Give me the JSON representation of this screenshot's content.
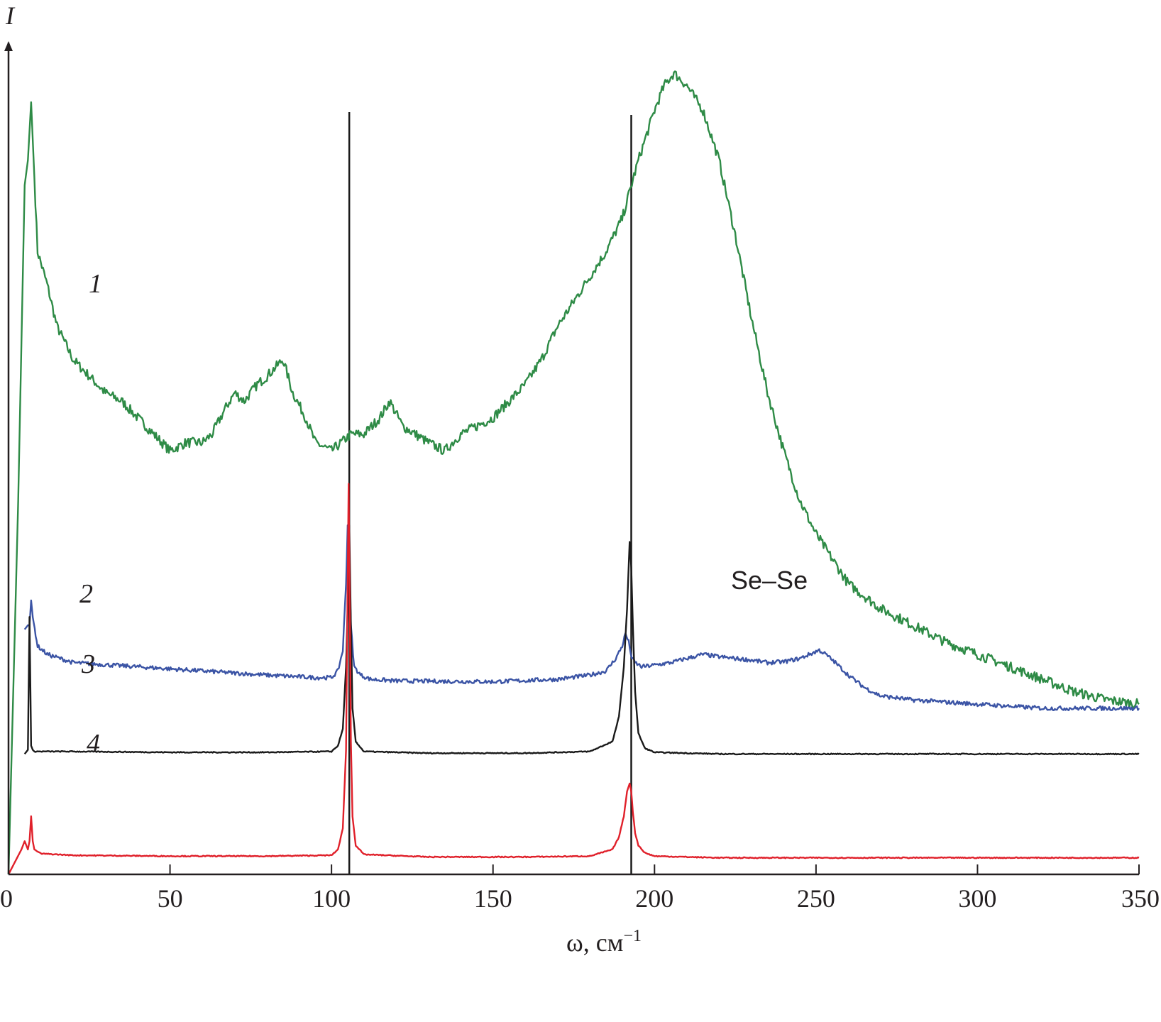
{
  "chart_data": {
    "type": "line",
    "xlabel": "ω, см",
    "xlabel_sup": "−1",
    "ylabel": "I",
    "xlim": [
      0,
      350
    ],
    "ylim": [
      0,
      1.0
    ],
    "x_ticks": [
      "0",
      "50",
      "100",
      "150",
      "200",
      "250",
      "300",
      "350"
    ],
    "grid": false,
    "legend": "none",
    "annotation": "Se–Se",
    "reference_lines_x": [
      105.5,
      192.8
    ],
    "series": [
      {
        "label": "1",
        "color": "#2e8b46",
        "x": [
          0,
          3,
          5,
          6,
          7,
          9,
          12,
          15,
          20,
          25,
          30,
          35,
          40,
          45,
          50,
          55,
          60,
          63,
          67,
          70,
          73,
          77,
          80,
          85,
          88,
          92,
          95,
          100,
          103,
          106,
          110,
          115,
          118,
          122,
          126,
          130,
          135,
          140,
          145,
          150,
          155,
          160,
          165,
          170,
          175,
          180,
          185,
          190,
          195,
          200,
          203,
          206,
          210,
          215,
          220,
          225,
          230,
          235,
          240,
          245,
          250,
          255,
          260,
          270,
          280,
          290,
          300,
          310,
          320,
          330,
          340,
          350
        ],
        "y": [
          0.0,
          0.45,
          0.83,
          0.86,
          0.93,
          0.75,
          0.71,
          0.66,
          0.62,
          0.6,
          0.58,
          0.57,
          0.55,
          0.53,
          0.51,
          0.52,
          0.52,
          0.53,
          0.56,
          0.58,
          0.57,
          0.59,
          0.6,
          0.62,
          0.58,
          0.55,
          0.52,
          0.51,
          0.52,
          0.53,
          0.53,
          0.55,
          0.57,
          0.54,
          0.53,
          0.52,
          0.51,
          0.53,
          0.54,
          0.55,
          0.57,
          0.59,
          0.62,
          0.66,
          0.69,
          0.72,
          0.75,
          0.79,
          0.86,
          0.92,
          0.95,
          0.965,
          0.95,
          0.92,
          0.86,
          0.77,
          0.67,
          0.58,
          0.51,
          0.45,
          0.41,
          0.38,
          0.35,
          0.32,
          0.3,
          0.28,
          0.265,
          0.25,
          0.235,
          0.22,
          0.21,
          0.205
        ]
      },
      {
        "label": "2",
        "color": "#3b54a5",
        "x": [
          5,
          6,
          6.5,
          7,
          7.5,
          9,
          12,
          20,
          40,
          60,
          80,
          95,
          100,
          102,
          103.5,
          104.5,
          105,
          105.5,
          106,
          107,
          109,
          112,
          120,
          150,
          170,
          180,
          185,
          188,
          190,
          191,
          192,
          193,
          194,
          196,
          200,
          205,
          210,
          215,
          220,
          225,
          230,
          235,
          240,
          245,
          248,
          251,
          253,
          256,
          260,
          265,
          270,
          280,
          300,
          320,
          350
        ],
        "y": [
          0.295,
          0.3,
          0.3,
          0.33,
          0.31,
          0.275,
          0.265,
          0.255,
          0.25,
          0.245,
          0.24,
          0.237,
          0.237,
          0.245,
          0.27,
          0.35,
          0.42,
          0.37,
          0.3,
          0.25,
          0.24,
          0.235,
          0.233,
          0.232,
          0.235,
          0.24,
          0.245,
          0.26,
          0.275,
          0.29,
          0.28,
          0.26,
          0.255,
          0.25,
          0.252,
          0.255,
          0.26,
          0.265,
          0.262,
          0.26,
          0.258,
          0.255,
          0.256,
          0.26,
          0.265,
          0.27,
          0.265,
          0.255,
          0.24,
          0.225,
          0.215,
          0.21,
          0.205,
          0.2,
          0.2
        ]
      },
      {
        "label": "3",
        "color": "#1a1a1a",
        "x": [
          5,
          6,
          6.5,
          7,
          7.5,
          8,
          10,
          20,
          50,
          80,
          100,
          102,
          103.5,
          104.5,
          105,
          105.5,
          106,
          106.5,
          107.5,
          110,
          130,
          160,
          180,
          187,
          189,
          190.5,
          191.5,
          192.3,
          192.8,
          193.3,
          194,
          195,
          197,
          200,
          220,
          260,
          300,
          350
        ],
        "y": [
          0.145,
          0.15,
          0.31,
          0.155,
          0.15,
          0.148,
          0.148,
          0.148,
          0.147,
          0.147,
          0.148,
          0.155,
          0.175,
          0.25,
          0.32,
          0.42,
          0.3,
          0.2,
          0.16,
          0.148,
          0.146,
          0.146,
          0.148,
          0.16,
          0.19,
          0.25,
          0.32,
          0.4,
          0.37,
          0.3,
          0.22,
          0.17,
          0.152,
          0.147,
          0.145,
          0.145,
          0.145,
          0.145
        ]
      },
      {
        "label": "4",
        "color": "#e0202a",
        "x": [
          0,
          2,
          4,
          5,
          6,
          6.5,
          7,
          7.5,
          8,
          10,
          20,
          50,
          80,
          100,
          102,
          103.5,
          104.5,
          105,
          105.3,
          105.6,
          106,
          106.5,
          107.5,
          110,
          130,
          160,
          180,
          187,
          189,
          190.5,
          191.5,
          192.3,
          192.8,
          193.3,
          194,
          195,
          197,
          200,
          220,
          260,
          300,
          350
        ],
        "y": [
          0.0,
          0.015,
          0.03,
          0.04,
          0.03,
          0.04,
          0.07,
          0.04,
          0.03,
          0.025,
          0.023,
          0.022,
          0.022,
          0.023,
          0.03,
          0.055,
          0.15,
          0.35,
          0.47,
          0.35,
          0.16,
          0.07,
          0.035,
          0.024,
          0.021,
          0.021,
          0.022,
          0.03,
          0.045,
          0.07,
          0.1,
          0.11,
          0.1,
          0.075,
          0.05,
          0.035,
          0.026,
          0.022,
          0.02,
          0.02,
          0.02,
          0.02
        ]
      }
    ]
  }
}
